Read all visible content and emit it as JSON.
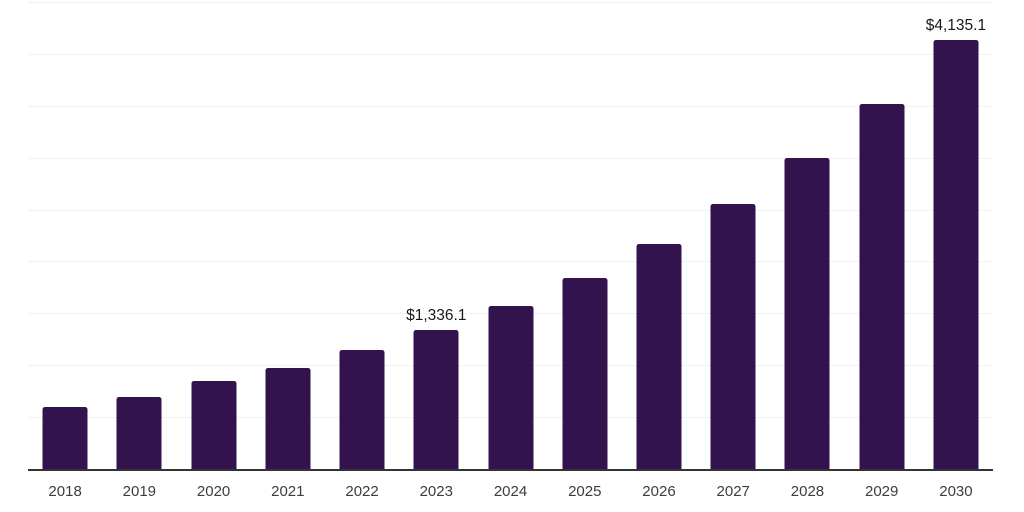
{
  "chart_data": {
    "type": "bar",
    "title": "",
    "xlabel": "",
    "ylabel": "",
    "categories": [
      "2018",
      "2019",
      "2020",
      "2021",
      "2022",
      "2023",
      "2024",
      "2025",
      "2026",
      "2027",
      "2028",
      "2029",
      "2030"
    ],
    "values": [
      600,
      690,
      850,
      975,
      1145,
      1336.1,
      1570,
      1845,
      2170,
      2550,
      2995,
      3520,
      4135.1
    ],
    "value_labels": {
      "2023": "$1,336.1",
      "2030": "$4,135.1"
    },
    "ylim": [
      0,
      4500
    ],
    "gridline_step": 500,
    "grid": true,
    "legend": "none"
  },
  "colors": {
    "bar": "#32134E",
    "grid": "#F1F1F2",
    "axis": "#333333",
    "tick_label": "#3D3D3D",
    "value_label": "#1A1A1A",
    "background": "#FFFFFF"
  }
}
